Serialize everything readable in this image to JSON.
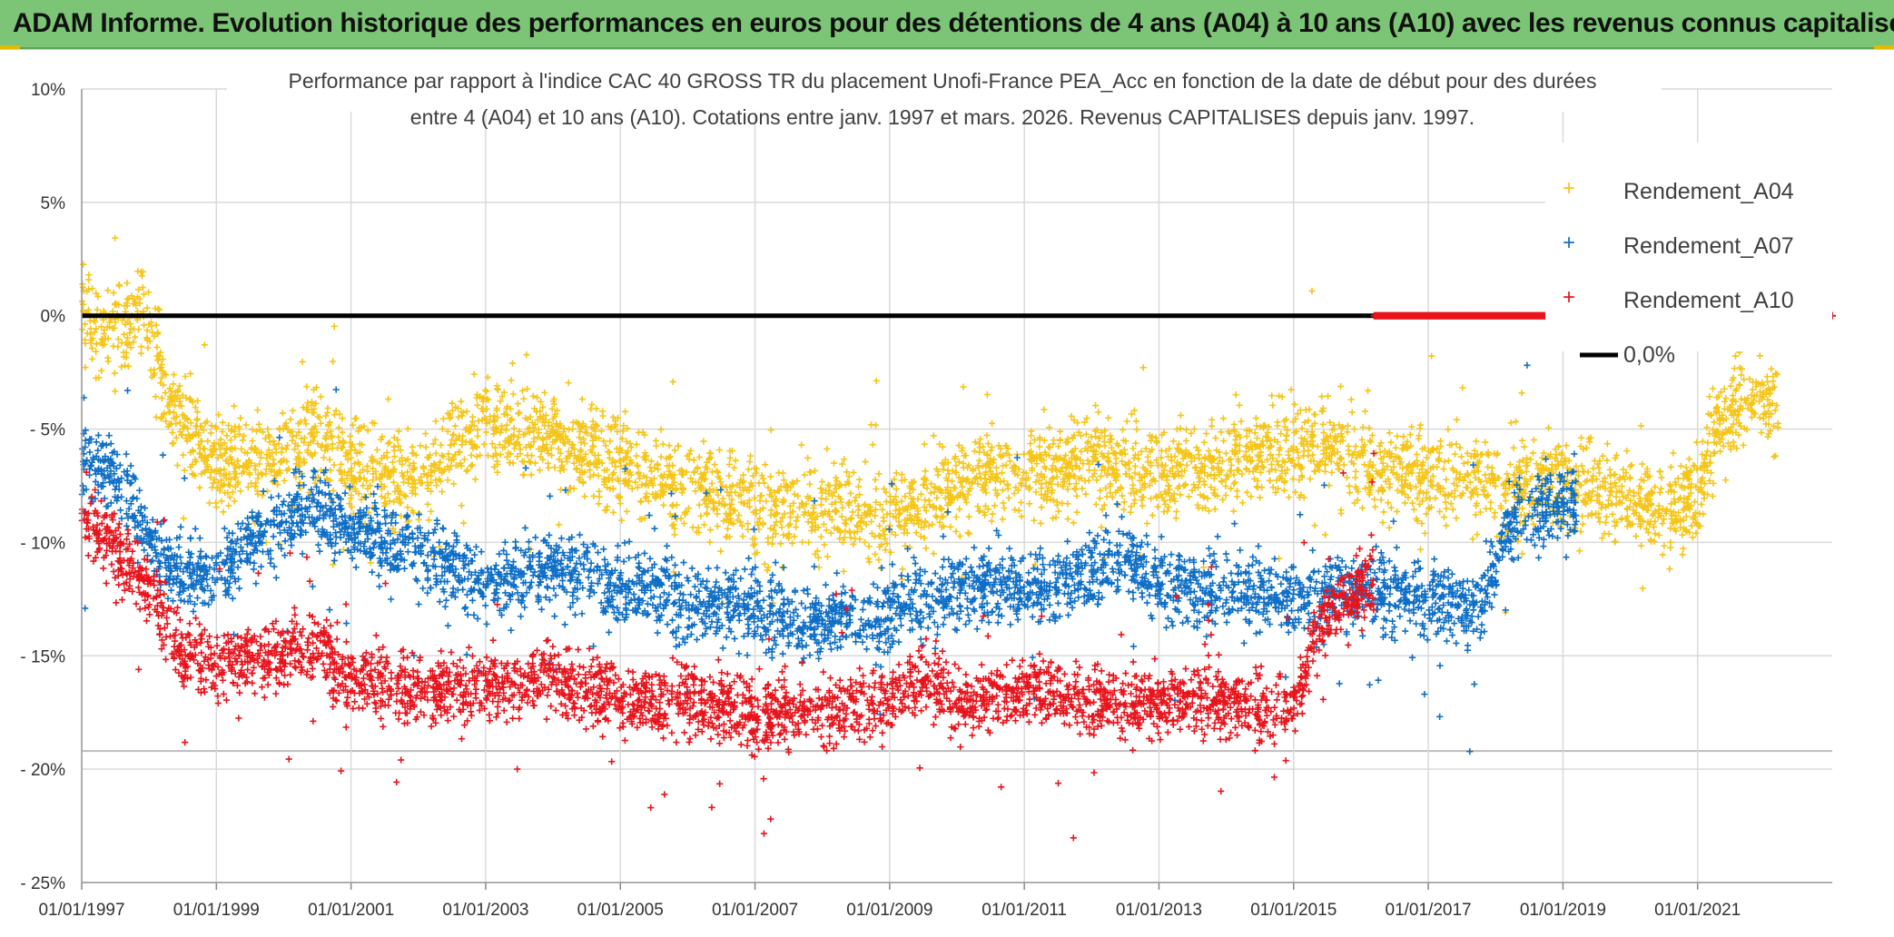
{
  "header": {
    "banner_title": "ADAM Informe. Evolution historique des performances en euros pour des détentions de 4 ans (A04) à 10 ans (A10) avec les revenus connus capitalisés"
  },
  "colors": {
    "banner": "#7cc576",
    "a04": "#f5c518",
    "a07": "#0f6fc6",
    "a10": "#e8141c",
    "zero_line": "#000000",
    "grid": "#d9d9d9"
  },
  "chart_data": {
    "type": "scatter",
    "title_lines": [
      "Performance par rapport à l'indice CAC 40 GROSS TR  du placement Unofi-France PEA_Acc en fonction de la date de début pour des durées",
      "entre 4 (A04) et 10 ans (A10). Cotations entre janv. 1997 et mars. 2026. Revenus CAPITALISES depuis janv. 1997."
    ],
    "xlabel": "",
    "ylabel": "",
    "x_range": [
      1997.0,
      2023.0
    ],
    "ylim": [
      -25,
      10
    ],
    "y_ticks": [
      10,
      5,
      0,
      -5,
      -10,
      -15,
      -20,
      -25
    ],
    "y_tick_labels": [
      "10%",
      "5%",
      "0%",
      "- 5%",
      "- 10%",
      "- 15%",
      "- 20%",
      "- 25%"
    ],
    "x_ticks": [
      1997,
      1999,
      2001,
      2003,
      2005,
      2007,
      2009,
      2011,
      2013,
      2015,
      2017,
      2019,
      2021
    ],
    "x_tick_labels": [
      "01/01/1997",
      "01/01/1999",
      "01/01/2001",
      "01/01/2003",
      "01/01/2005",
      "01/01/2007",
      "01/01/2009",
      "01/01/2011",
      "01/01/2013",
      "01/01/2015",
      "01/01/2017",
      "01/01/2019",
      "01/01/2021"
    ],
    "legend_position": "top-right",
    "series": [
      {
        "name": "Rendement_A04",
        "color": "#f5c518",
        "marker": "+",
        "x_start": 1997.0,
        "x_end": 2022.2,
        "x": [
          1997.0,
          1997.3,
          1997.6,
          1997.9,
          1998.3,
          1999.0,
          2000.0,
          2000.5,
          2001.0,
          2002.0,
          2002.7,
          2003.0,
          2003.5,
          2004.0,
          2005.0,
          2006.0,
          2007.0,
          2008.0,
          2009.0,
          2010.0,
          2011.0,
          2012.0,
          2013.0,
          2014.0,
          2015.0,
          2015.5,
          2016.0,
          2017.0,
          2018.0,
          2019.0,
          2020.0,
          2020.5,
          2021.0,
          2021.3,
          2021.6,
          2022.2
        ],
        "y": [
          0.5,
          -1.0,
          -0.5,
          0.5,
          -4.0,
          -6.5,
          -6.0,
          -5.5,
          -6.5,
          -7.5,
          -5.0,
          -4.5,
          -5.0,
          -5.5,
          -6.5,
          -7.5,
          -8.5,
          -8.5,
          -9.0,
          -7.5,
          -7.0,
          -6.5,
          -7.0,
          -6.5,
          -6.0,
          -5.5,
          -6.5,
          -7.0,
          -7.5,
          -7.5,
          -8.0,
          -8.5,
          -8.0,
          -4.5,
          -4.0,
          -3.8
        ],
        "spread": 1.4
      },
      {
        "name": "Rendement_A07",
        "color": "#0f6fc6",
        "marker": "+",
        "x_start": 1997.0,
        "x_end": 2019.2,
        "x": [
          1997.0,
          1997.5,
          1998.2,
          1999.0,
          1999.5,
          2000.0,
          2000.5,
          2001.0,
          2002.0,
          2003.0,
          2004.0,
          2004.5,
          2005.0,
          2006.0,
          2007.0,
          2008.0,
          2009.0,
          2009.5,
          2010.0,
          2011.0,
          2012.0,
          2012.5,
          2013.0,
          2014.0,
          2015.0,
          2015.8,
          2016.5,
          2017.0,
          2017.8,
          2018.2,
          2018.6,
          2019.2
        ],
        "y": [
          -6.5,
          -7.0,
          -11.0,
          -11.5,
          -10.0,
          -9.0,
          -8.5,
          -9.5,
          -10.5,
          -12.0,
          -11.0,
          -11.5,
          -12.0,
          -12.5,
          -13.0,
          -13.5,
          -13.0,
          -12.5,
          -12.0,
          -12.0,
          -11.5,
          -10.5,
          -12.0,
          -12.0,
          -12.5,
          -12.0,
          -12.5,
          -12.5,
          -13.0,
          -9.0,
          -8.5,
          -8.0
        ],
        "spread": 1.2
      },
      {
        "name": "Rendement_A10",
        "color": "#e8141c",
        "marker": "+",
        "x_start": 1997.0,
        "x_end": 2016.2,
        "x": [
          1997.0,
          1997.5,
          1998.0,
          1998.5,
          1999.0,
          2000.0,
          2000.5,
          2001.0,
          2002.0,
          2003.0,
          2004.0,
          2005.0,
          2006.0,
          2007.0,
          2008.0,
          2009.0,
          2009.5,
          2010.0,
          2011.0,
          2012.0,
          2013.0,
          2014.0,
          2015.0,
          2015.3,
          2015.7,
          2016.2
        ],
        "y": [
          -9.0,
          -10.0,
          -12.0,
          -15.0,
          -15.5,
          -15.0,
          -14.5,
          -16.0,
          -16.5,
          -16.5,
          -16.0,
          -17.0,
          -17.0,
          -17.5,
          -17.5,
          -17.0,
          -16.0,
          -17.0,
          -16.5,
          -17.0,
          -17.0,
          -17.0,
          -17.5,
          -14.0,
          -12.5,
          -12.0
        ],
        "spread": 1.1
      },
      {
        "name": "0,0%",
        "color": "#000000",
        "type": "line",
        "x": [
          1997.0,
          2023.0
        ],
        "y": [
          0,
          0
        ]
      }
    ],
    "zero_markers": {
      "color": "#e8141c",
      "x_start": 2016.2,
      "x_end": 2018.8,
      "y": 0,
      "extra_x": 2023.0
    }
  }
}
